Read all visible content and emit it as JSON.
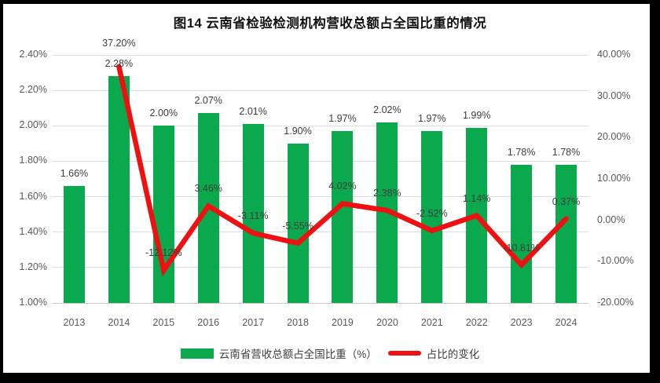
{
  "title": "图14  云南省检验检测机构营收总额占全国比重的情况",
  "chart_data": {
    "type": "combo-bar-line",
    "title": "图14  云南省检验检测机构营收总额占全国比重的情况",
    "categories": [
      "2013",
      "2014",
      "2015",
      "2016",
      "2017",
      "2018",
      "2019",
      "2020",
      "2021",
      "2022",
      "2023",
      "2024"
    ],
    "series": [
      {
        "name": "云南省营收总额占全国比重（%）",
        "type": "bar",
        "axis": "left",
        "color": "#0ba94e",
        "values": [
          1.66,
          2.28,
          2.0,
          2.07,
          2.01,
          1.9,
          1.97,
          2.02,
          1.97,
          1.99,
          1.78,
          1.78
        ],
        "labels": [
          "1.66%",
          "2.28%",
          "2.00%",
          "2.07%",
          "2.01%",
          "1.90%",
          "1.97%",
          "2.02%",
          "1.97%",
          "1.99%",
          "1.78%",
          "1.78%"
        ]
      },
      {
        "name": "占比的变化",
        "type": "line",
        "axis": "right",
        "color": "#ee1111",
        "values": [
          null,
          37.2,
          -12.12,
          3.46,
          -3.11,
          -5.55,
          4.02,
          2.38,
          -2.52,
          1.14,
          -10.81,
          0.37
        ],
        "labels": [
          null,
          "37.20%",
          "-12.12%",
          "3.46%",
          "-3.11%",
          "-5.55%",
          "4.02%",
          "2.38%",
          "-2.52%",
          "1.14%",
          "-10.81%",
          "0.37%"
        ]
      }
    ],
    "left_axis": {
      "min": 1.0,
      "max": 2.4,
      "step": 0.2,
      "ticks": [
        "2.40%",
        "2.20%",
        "2.00%",
        "1.80%",
        "1.60%",
        "1.40%",
        "1.20%",
        "1.00%"
      ]
    },
    "right_axis": {
      "min": -20,
      "max": 40,
      "step": 10,
      "ticks": [
        "40.00%",
        "30.00%",
        "20.00%",
        "10.00%",
        "0.00%",
        "-10.00%",
        "-20.00%"
      ]
    },
    "grid": true,
    "legend_position": "bottom"
  },
  "colors": {
    "bar_green": "#0ba94e",
    "line_red": "#ee1111",
    "gridline": "#dcdcdc",
    "axis_text": "#595959",
    "label_text": "#3d3d3d",
    "frame": "#000000"
  }
}
